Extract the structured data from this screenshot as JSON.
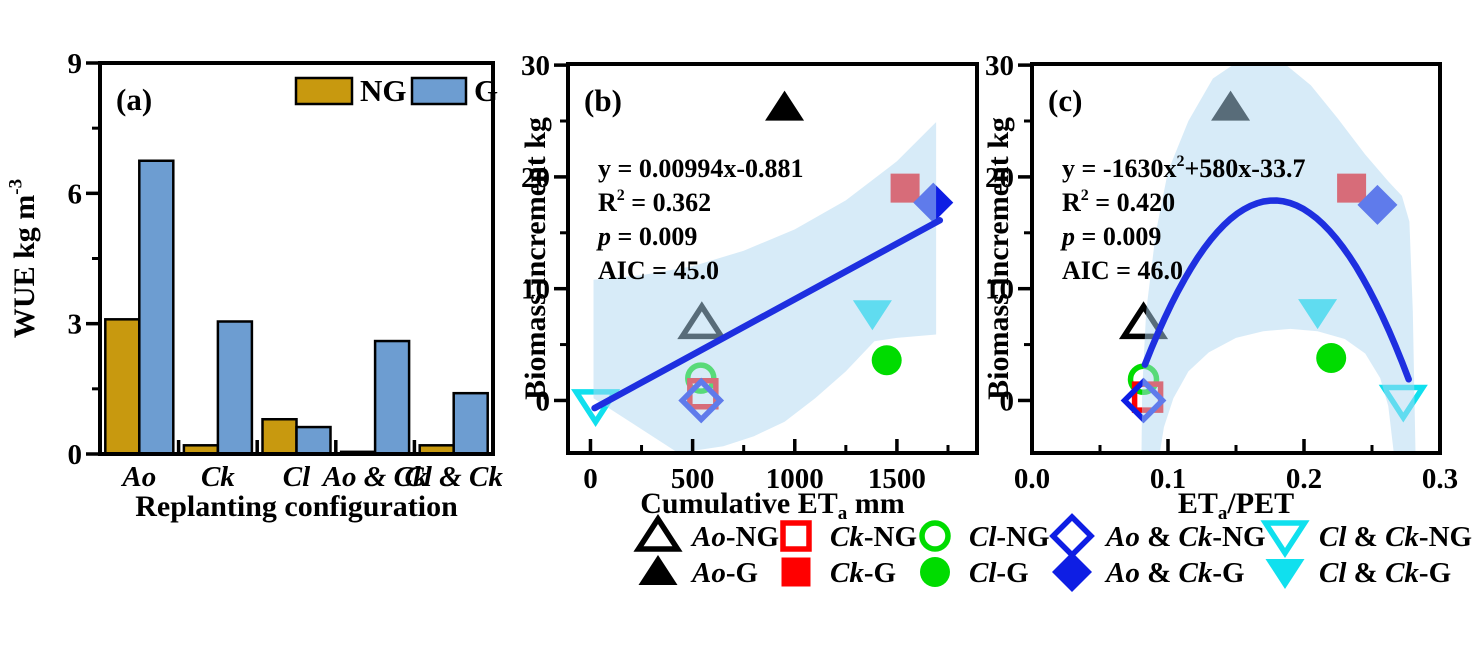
{
  "colors": {
    "gold": "#C8990F",
    "bar_blue": "#6D9DD1",
    "black": "#000000",
    "red": "#FF0000",
    "green": "#00DC00",
    "blue": "#0E1EE4",
    "cyan": "#10E0EE",
    "fit_blue": "#1E2FE0",
    "band_blue": "#AFD7F2",
    "frame": "#000000"
  },
  "series": [
    {
      "key": "ao_ng",
      "marker": "triangle-up",
      "filled": false,
      "color_key": "black",
      "label": [
        [
          "i",
          "Ao"
        ],
        [
          "r",
          "-NG"
        ]
      ]
    },
    {
      "key": "ao_g",
      "marker": "triangle-up",
      "filled": true,
      "color_key": "black",
      "label": [
        [
          "i",
          "Ao"
        ],
        [
          "r",
          "-G"
        ]
      ]
    },
    {
      "key": "ck_ng",
      "marker": "square",
      "filled": false,
      "color_key": "red",
      "label": [
        [
          "i",
          "Ck"
        ],
        [
          "r",
          "-NG"
        ]
      ]
    },
    {
      "key": "ck_g",
      "marker": "square",
      "filled": true,
      "color_key": "red",
      "label": [
        [
          "i",
          "Ck"
        ],
        [
          "r",
          "-G"
        ]
      ]
    },
    {
      "key": "cl_ng",
      "marker": "circle",
      "filled": false,
      "color_key": "green",
      "label": [
        [
          "i",
          "Cl"
        ],
        [
          "r",
          "-NG"
        ]
      ]
    },
    {
      "key": "cl_g",
      "marker": "circle",
      "filled": true,
      "color_key": "green",
      "label": [
        [
          "i",
          "Cl"
        ],
        [
          "r",
          "-G"
        ]
      ]
    },
    {
      "key": "aock_ng",
      "marker": "diamond",
      "filled": false,
      "color_key": "blue",
      "label": [
        [
          "i",
          "Ao"
        ],
        [
          "r",
          " & "
        ],
        [
          "i",
          "Ck"
        ],
        [
          "r",
          "-NG"
        ]
      ]
    },
    {
      "key": "aock_g",
      "marker": "diamond",
      "filled": true,
      "color_key": "blue",
      "label": [
        [
          "i",
          "Ao"
        ],
        [
          "r",
          " & "
        ],
        [
          "i",
          "Ck"
        ],
        [
          "r",
          "-G"
        ]
      ]
    },
    {
      "key": "clck_ng",
      "marker": "triangle-down",
      "filled": false,
      "color_key": "cyan",
      "label": [
        [
          "i",
          "Cl"
        ],
        [
          "r",
          " & "
        ],
        [
          "i",
          "Ck"
        ],
        [
          "r",
          "-NG"
        ]
      ]
    },
    {
      "key": "clck_g",
      "marker": "triangle-down",
      "filled": true,
      "color_key": "cyan",
      "label": [
        [
          "i",
          "Cl"
        ],
        [
          "r",
          " & "
        ],
        [
          "i",
          "Ck"
        ],
        [
          "r",
          "-G"
        ]
      ]
    }
  ],
  "chart_data": [
    {
      "type": "bar",
      "panel_label": "(a)",
      "categories": [
        "Ao",
        "Ck",
        "Cl",
        "Ao & Ck",
        "Cl & Ck"
      ],
      "categories_italic": true,
      "xlabel": "Replanting configuration",
      "ylabel_segments": [
        [
          "r",
          "WUE kg m"
        ],
        [
          "sup",
          "-3"
        ]
      ],
      "ylim": [
        0,
        9
      ],
      "yticks": [
        0,
        3,
        6,
        9
      ],
      "yminor": [
        1.5,
        4.5,
        7.5
      ],
      "series": [
        {
          "name": "NG",
          "color_key": "gold",
          "values": [
            3.1,
            0.2,
            0.8,
            0.05,
            0.2
          ]
        },
        {
          "name": "G",
          "color_key": "bar_blue",
          "values": [
            6.75,
            3.05,
            0.62,
            2.6,
            1.4
          ]
        }
      ],
      "legend": [
        {
          "name": "NG",
          "color_key": "gold"
        },
        {
          "name": "G",
          "color_key": "bar_blue"
        }
      ]
    },
    {
      "type": "scatter",
      "panel_label": "(b)",
      "xlabel_segments": [
        [
          "r",
          "Cumulative ET"
        ],
        [
          "sub",
          "a"
        ],
        [
          "r",
          " mm"
        ]
      ],
      "ylabel": "Biomass increment kg",
      "xlim": [
        -110,
        1892
      ],
      "ylim": [
        -4.7,
        30.1
      ],
      "xticks": [
        {
          "v": 0,
          "label": "0"
        },
        {
          "v": 500,
          "label": "500"
        },
        {
          "v": 1000,
          "label": "1000"
        },
        {
          "v": 1500,
          "label": "1500"
        }
      ],
      "xminor": [
        250,
        750,
        1250,
        1750
      ],
      "yticks": [
        {
          "v": 0,
          "label": "0"
        },
        {
          "v": 10,
          "label": "10"
        },
        {
          "v": 20,
          "label": "20"
        },
        {
          "v": 30,
          "label": "30"
        }
      ],
      "yminor": [
        5,
        15,
        25
      ],
      "annotation": [
        [
          [
            "r",
            "y = 0.00994x-0.881"
          ]
        ],
        [
          [
            "r",
            "R"
          ],
          [
            "sup",
            "2"
          ],
          [
            "r",
            " = 0.362"
          ]
        ],
        [
          [
            "i",
            "p"
          ],
          [
            "r",
            " = 0.009"
          ]
        ],
        [
          [
            "r",
            "AIC = 45.0"
          ]
        ]
      ],
      "fit": {
        "kind": "linear",
        "coeffs": [
          0.00994,
          -0.881
        ],
        "x_range": [
          20,
          1710
        ]
      },
      "band_polygon": [
        [
          15,
          10.8
        ],
        [
          250,
          11.2
        ],
        [
          500,
          12.0
        ],
        [
          750,
          13.4
        ],
        [
          1000,
          15.3
        ],
        [
          1250,
          17.9
        ],
        [
          1500,
          21.4
        ],
        [
          1692,
          24.9
        ],
        [
          1692,
          5.9
        ],
        [
          1500,
          5.6
        ],
        [
          1390,
          5.3
        ],
        [
          1250,
          2.6
        ],
        [
          1100,
          0.2
        ],
        [
          950,
          -1.9
        ],
        [
          800,
          -3.2
        ],
        [
          650,
          -4.1
        ],
        [
          430,
          -4.7
        ],
        [
          15,
          0.2
        ]
      ],
      "points": {
        "ao_ng": [
          545,
          6.9
        ],
        "ao_g": [
          950,
          26.2
        ],
        "ck_ng": [
          550,
          0.6
        ],
        "ck_g": [
          1540,
          19.0
        ],
        "cl_ng": [
          540,
          2.0
        ],
        "cl_g": [
          1450,
          3.6
        ],
        "aock_ng": [
          542,
          0.0
        ],
        "aock_g": [
          1678,
          17.7
        ],
        "clck_ng": [
          25,
          -0.4
        ],
        "clck_g": [
          1380,
          7.8
        ]
      },
      "draw_order": [
        "clck_ng",
        "ao_g",
        "ck_g",
        "aock_g",
        "clck_g",
        "cl_g",
        "ao_ng",
        "cl_ng",
        "ck_ng",
        "aock_ng"
      ]
    },
    {
      "type": "scatter",
      "panel_label": "(c)",
      "xlabel_segments": [
        [
          "r",
          "ET"
        ],
        [
          "sub",
          "a"
        ],
        [
          "r",
          "/PET"
        ]
      ],
      "ylabel": "Biomass increment kg",
      "xlim": [
        0,
        0.3
      ],
      "ylim": [
        -4.7,
        30.1
      ],
      "xticks": [
        {
          "v": 0,
          "label": "0.0"
        },
        {
          "v": 0.1,
          "label": "0.1"
        },
        {
          "v": 0.2,
          "label": "0.2"
        },
        {
          "v": 0.3,
          "label": "0.3"
        }
      ],
      "xminor": [
        0.05,
        0.15,
        0.25
      ],
      "yticks": [
        {
          "v": 0,
          "label": "0"
        },
        {
          "v": 10,
          "label": "10"
        },
        {
          "v": 20,
          "label": "20"
        },
        {
          "v": 30,
          "label": "30"
        }
      ],
      "yminor": [
        5,
        15,
        25
      ],
      "annotation": [
        [
          [
            "r",
            "y = -1630x"
          ],
          [
            "sup",
            "2"
          ],
          [
            "r",
            "+580x-33.7"
          ]
        ],
        [
          [
            "r",
            "R"
          ],
          [
            "sup",
            "2"
          ],
          [
            "r",
            " = 0.420"
          ]
        ],
        [
          [
            "i",
            "p"
          ],
          [
            "r",
            " = 0.009"
          ]
        ],
        [
          [
            "r",
            "AIC = 46.0"
          ]
        ]
      ],
      "fit": {
        "kind": "quadratic",
        "coeffs": [
          -1630,
          580,
          -33.7
        ],
        "x_range": [
          0.083,
          0.277
        ]
      },
      "band_polygon": [
        [
          0.0805,
          -4.7
        ],
        [
          0.081,
          1
        ],
        [
          0.084,
          8
        ],
        [
          0.091,
          15
        ],
        [
          0.1,
          20.5
        ],
        [
          0.115,
          25
        ],
        [
          0.133,
          28.8
        ],
        [
          0.15,
          30.2
        ],
        [
          0.165,
          30.8
        ],
        [
          0.185,
          30.2
        ],
        [
          0.205,
          28.2
        ],
        [
          0.225,
          25.2
        ],
        [
          0.245,
          22
        ],
        [
          0.262,
          19.6
        ],
        [
          0.272,
          18.3
        ],
        [
          0.2775,
          16
        ],
        [
          0.28,
          8
        ],
        [
          0.282,
          -4.7
        ],
        [
          0.266,
          -4.7
        ],
        [
          0.262,
          -0.5
        ],
        [
          0.256,
          2.0
        ],
        [
          0.245,
          4.2
        ],
        [
          0.23,
          5.5
        ],
        [
          0.21,
          6.2
        ],
        [
          0.19,
          6.4
        ],
        [
          0.17,
          6.2
        ],
        [
          0.15,
          5.6
        ],
        [
          0.13,
          4.3
        ],
        [
          0.115,
          2.6
        ],
        [
          0.104,
          0.2
        ],
        [
          0.097,
          -2.4
        ],
        [
          0.094,
          -4.7
        ]
      ],
      "points": {
        "ao_ng": [
          0.082,
          6.9
        ],
        "ao_g": [
          0.146,
          26.2
        ],
        "ck_ng": [
          0.085,
          0.3
        ],
        "ck_g": [
          0.235,
          19.0
        ],
        "cl_ng": [
          0.082,
          1.9
        ],
        "cl_g": [
          0.22,
          3.8
        ],
        "aock_ng": [
          0.082,
          0.0
        ],
        "aock_g": [
          0.254,
          17.5
        ],
        "clck_ng": [
          0.273,
          0.0
        ],
        "clck_g": [
          0.21,
          7.9
        ]
      },
      "draw_order": [
        "clck_ng",
        "ao_g",
        "ck_g",
        "aock_g",
        "clck_g",
        "cl_g",
        "ao_ng",
        "cl_ng",
        "ck_ng",
        "aock_ng"
      ]
    }
  ],
  "legend_bottom": {
    "columns": [
      [
        "ao_ng",
        "ao_g"
      ],
      [
        "ck_ng",
        "ck_g"
      ],
      [
        "cl_ng",
        "cl_g"
      ],
      [
        "aock_ng",
        "aock_g"
      ],
      [
        "clck_ng",
        "clck_g"
      ]
    ]
  }
}
